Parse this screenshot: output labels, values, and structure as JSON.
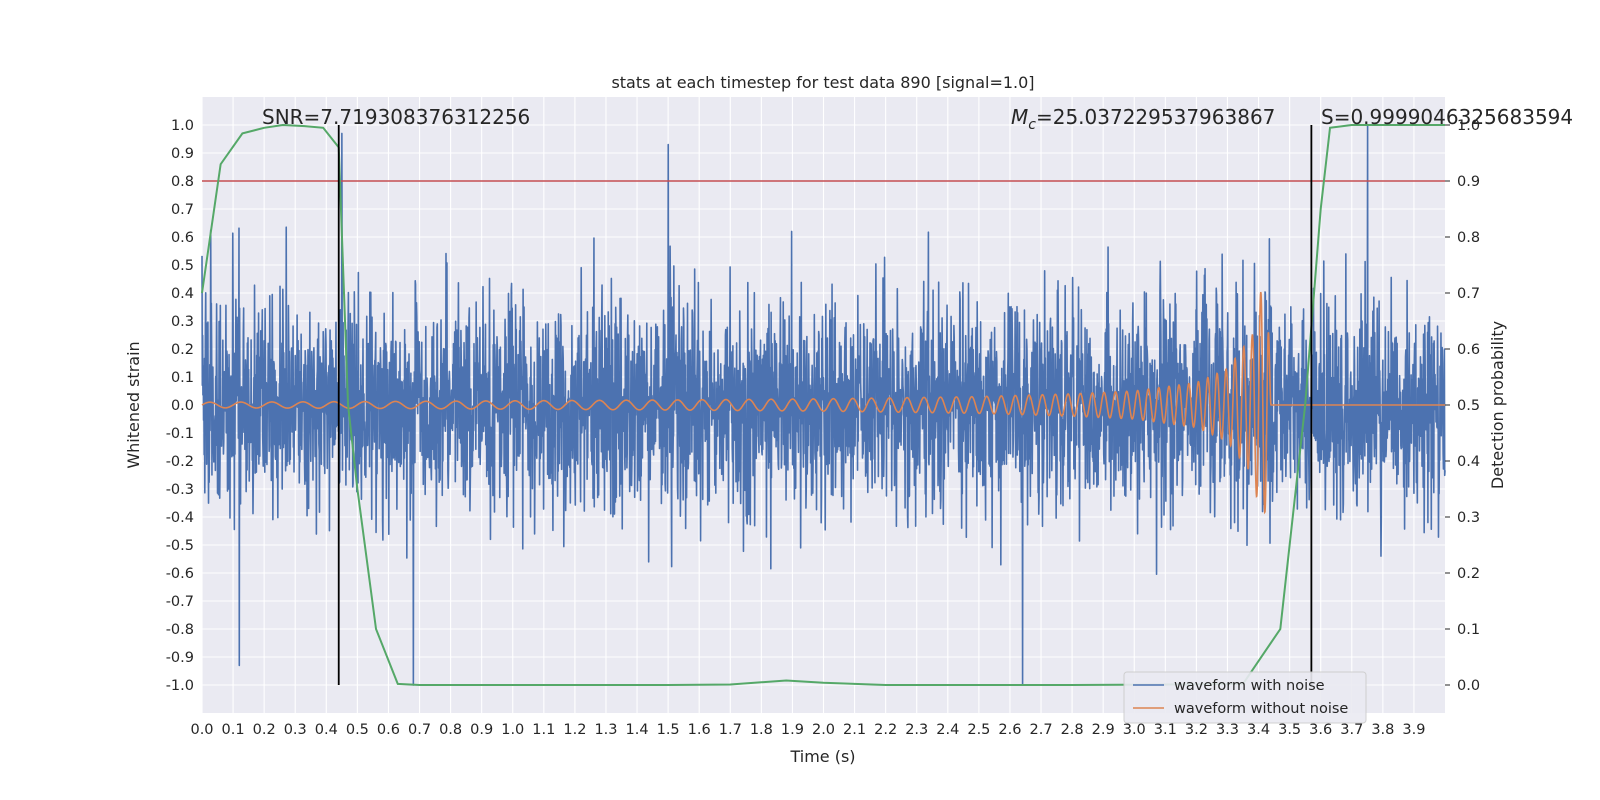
{
  "chart_data": {
    "type": "line",
    "title": "stats at each timestep for test data 890 [signal=1.0]",
    "xlabel": "Time (s)",
    "ylabel": "Whitened strain",
    "y2label": "Detection probability",
    "xlim": [
      0.0,
      4.0
    ],
    "ylim": [
      -1.1,
      1.1
    ],
    "y2lim": [
      -0.05,
      1.05
    ],
    "x_ticks": [
      "0.0",
      "0.1",
      "0.2",
      "0.3",
      "0.4",
      "0.5",
      "0.6",
      "0.7",
      "0.8",
      "0.9",
      "1.0",
      "1.1",
      "1.2",
      "1.3",
      "1.4",
      "1.5",
      "1.6",
      "1.7",
      "1.8",
      "1.9",
      "2.0",
      "2.1",
      "2.2",
      "2.3",
      "2.4",
      "2.5",
      "2.6",
      "2.7",
      "2.8",
      "2.9",
      "3.0",
      "3.1",
      "3.2",
      "3.3",
      "3.4",
      "3.5",
      "3.6",
      "3.7",
      "3.8",
      "3.9"
    ],
    "y_ticks": [
      "1.0",
      "0.9",
      "0.8",
      "0.7",
      "0.6",
      "0.5",
      "0.4",
      "0.3",
      "0.2",
      "0.1",
      "0.0",
      "-0.1",
      "-0.2",
      "-0.3",
      "-0.4",
      "-0.5",
      "-0.6",
      "-0.7",
      "-0.8",
      "-0.9",
      "-1.0"
    ],
    "y2_ticks": [
      "1.0",
      "0.9",
      "0.8",
      "0.7",
      "0.6",
      "0.5",
      "0.4",
      "0.3",
      "0.2",
      "0.1",
      "0.0"
    ],
    "grid": true,
    "legend_position": "bottom-right",
    "annotations": {
      "snr": "SNR=7.719308376312256",
      "mc_symbol": "M",
      "mc_sub": "c",
      "mc_value": "=25.037229537963867",
      "s": "S=0.9999046325683594"
    },
    "series": [
      {
        "name": "waveform with noise",
        "color": "#4c72b0",
        "description_kind": "noise",
        "amplitude_typical": 0.3,
        "y_range": [
          -1.0,
          1.0
        ],
        "notable_peaks": [
          [
            0.12,
            -0.93
          ],
          [
            0.45,
            0.97
          ],
          [
            0.68,
            -1.0
          ],
          [
            1.5,
            0.93
          ],
          [
            2.64,
            -1.0
          ],
          [
            3.75,
            1.0
          ]
        ]
      },
      {
        "name": "waveform without noise",
        "color": "#dd8452",
        "x": [
          0.0,
          0.5,
          1.0,
          1.5,
          2.0,
          2.5,
          2.8,
          3.0,
          3.2,
          3.3,
          3.38,
          3.41,
          3.43,
          3.44
        ],
        "envelope": [
          0.01,
          0.012,
          0.015,
          0.018,
          0.022,
          0.03,
          0.04,
          0.05,
          0.08,
          0.13,
          0.25,
          0.42,
          0.35,
          0.0
        ],
        "chirp_frequency_start_hz": 10,
        "chirp_frequency_end_hz": 38
      },
      {
        "name": "detection probability",
        "axis": "right",
        "color": "#55a868",
        "x": [
          0.0,
          0.06,
          0.13,
          0.2,
          0.26,
          0.33,
          0.39,
          0.44,
          0.47,
          0.5,
          0.56,
          0.63,
          0.7,
          1.0,
          1.5,
          1.7,
          1.88,
          2.0,
          2.2,
          2.5,
          2.8,
          3.1,
          3.35,
          3.47,
          3.55,
          3.6,
          3.63,
          3.7,
          3.8,
          4.0
        ],
        "y": [
          0.7,
          0.93,
          0.985,
          0.995,
          1.0,
          0.998,
          0.995,
          0.96,
          0.5,
          0.35,
          0.1,
          0.002,
          0.0,
          0.0,
          0.0,
          0.001,
          0.008,
          0.004,
          0.0,
          0.0,
          0.0,
          0.001,
          0.002,
          0.1,
          0.5,
          0.85,
          0.995,
          1.0,
          1.0,
          1.0
        ]
      }
    ],
    "hlines": [
      {
        "axis": "right",
        "y": 0.9,
        "color": "#c44e52"
      }
    ],
    "vlines": [
      {
        "x": 0.44,
        "color": "#000000"
      },
      {
        "x": 3.57,
        "color": "#000000"
      }
    ]
  }
}
